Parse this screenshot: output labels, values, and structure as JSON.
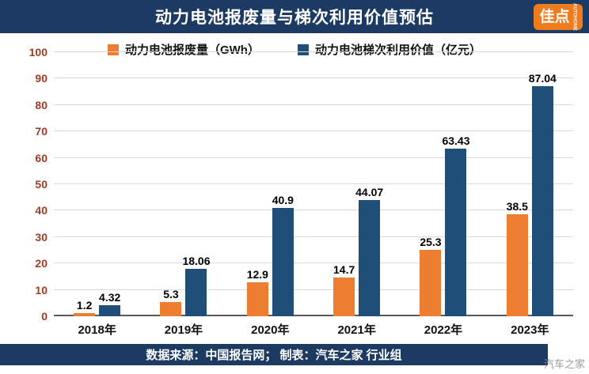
{
  "header": {
    "title": "动力电池报废量与梯次利用价值预估",
    "logo_text": "佳点",
    "logo_sub": "AUTOHOME"
  },
  "legend": [
    {
      "label": "动力电池报废量（GWh）",
      "color": "#ed7d31"
    },
    {
      "label": "动力电池梯次利用价值（亿元）",
      "color": "#1f4e79"
    }
  ],
  "chart_data": {
    "type": "bar",
    "title": "动力电池报废量与梯次利用价值预估",
    "categories": [
      "2018年",
      "2019年",
      "2020年",
      "2021年",
      "2022年",
      "2023年"
    ],
    "series": [
      {
        "name": "动力电池报废量（GWh）",
        "color": "#ed7d31",
        "values": [
          1.2,
          5.3,
          12.9,
          14.7,
          25.3,
          38.5
        ]
      },
      {
        "name": "动力电池梯次利用价值（亿元）",
        "color": "#1f4e79",
        "values": [
          4.32,
          18.06,
          40.9,
          44.07,
          63.43,
          87.04
        ]
      }
    ],
    "xlabel": "",
    "ylabel": "",
    "ylim": [
      0,
      100
    ],
    "ytick_interval": 10,
    "grid": true,
    "legend_position": "top"
  },
  "footer": {
    "source_text": "数据来源：中国报告网； 制表：汽车之家 行业组",
    "watermark": "汽车之家"
  },
  "colors": {
    "header_bg": "#1d3a63",
    "bar_orange": "#ed7d31",
    "bar_blue": "#1f4e79",
    "axis_label": "#9e3b25",
    "grid": "#d9d9d9"
  }
}
